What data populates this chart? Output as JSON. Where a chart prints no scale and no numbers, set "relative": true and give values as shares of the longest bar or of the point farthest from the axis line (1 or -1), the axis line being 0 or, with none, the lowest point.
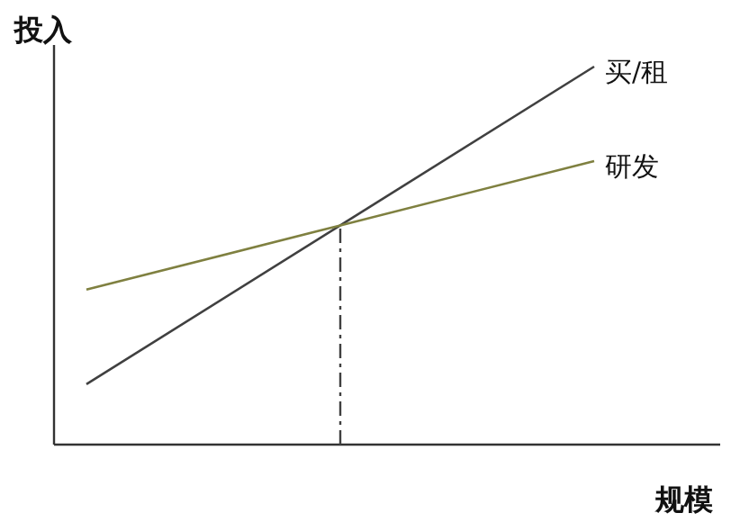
{
  "chart_data": {
    "type": "line",
    "relative": true,
    "ylabel": "投入",
    "xlabel": "规模",
    "categories": [
      null,
      null,
      null
    ],
    "series": [
      {
        "name": "买/租",
        "color": "#404040",
        "values": [
          0.16,
          0.58,
          1.0
        ]
      },
      {
        "name": "研发",
        "color": "#7f8040",
        "values": [
          0.41,
          0.58,
          0.75
        ]
      }
    ],
    "legend": false,
    "marker": "none",
    "line_style": "solid"
  }
}
